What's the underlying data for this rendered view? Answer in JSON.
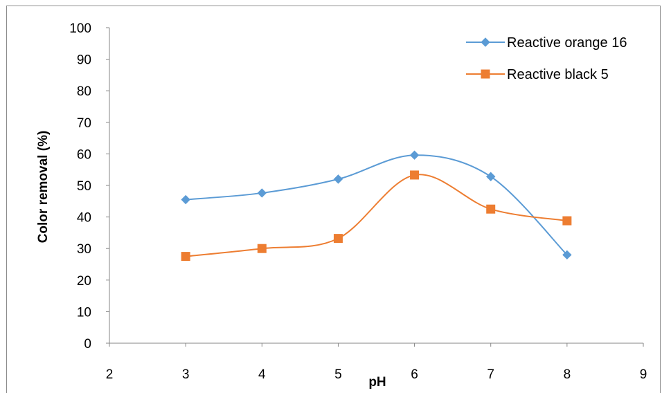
{
  "chart_data": {
    "type": "line",
    "title": "",
    "xlabel": "pH",
    "ylabel": "Color removal (%)",
    "xlim": [
      2,
      9
    ],
    "ylim": [
      0,
      100
    ],
    "x_ticks": [
      2,
      3,
      4,
      5,
      6,
      7,
      8,
      9
    ],
    "y_ticks": [
      0,
      10,
      20,
      30,
      40,
      50,
      60,
      70,
      80,
      90,
      100
    ],
    "grid": false,
    "legend_position": "top-right",
    "x": [
      3,
      4,
      5,
      6,
      7,
      8
    ],
    "series": [
      {
        "name": "Reactive orange 16",
        "values": [
          45.5,
          47.6,
          52,
          59.6,
          52.8,
          28
        ],
        "color": "#5b9bd5",
        "marker": "diamond"
      },
      {
        "name": "Reactive black 5",
        "values": [
          27.5,
          30,
          33.2,
          53.3,
          42.5,
          38.8
        ],
        "color": "#ed7d31",
        "marker": "square"
      }
    ]
  }
}
